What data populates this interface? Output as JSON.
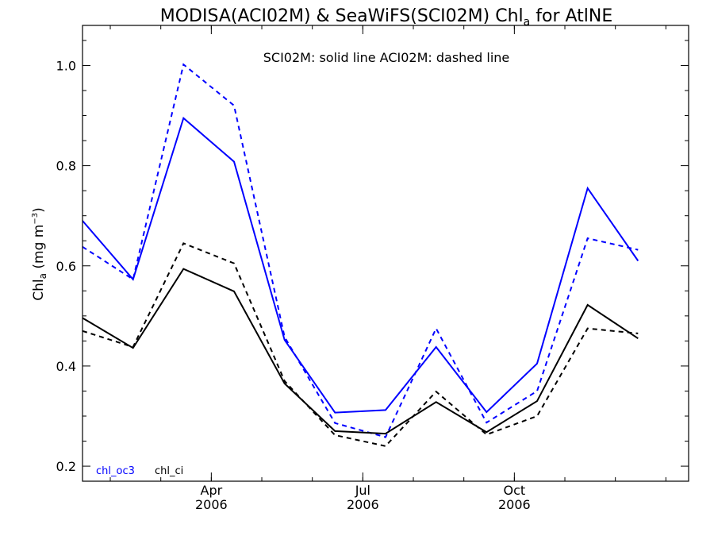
{
  "chart_data": {
    "type": "line",
    "title": {
      "main": "MODISA(ACI02M) & SeaWiFS(SCI02M)  Chl",
      "sub": "a",
      "suffix": " for AtlNE"
    },
    "annotation": "SCI02M: solid line   ACI02M: dashed line",
    "ylabel": {
      "main": "Chl",
      "sub": "a",
      "unit": " (mg m",
      "sup": "−3",
      "close": ")"
    },
    "ylim": [
      0.17,
      1.08
    ],
    "xlim": [
      1,
      13
    ],
    "yticks": [
      0.2,
      0.4,
      0.6,
      0.8,
      1.0
    ],
    "ytick_labels": [
      "0.2",
      "0.4",
      "0.6",
      "0.8",
      "1.0"
    ],
    "xticks": [
      {
        "x": 3.55,
        "month": "Apr",
        "year": "2006"
      },
      {
        "x": 6.55,
        "month": "Jul",
        "year": "2006"
      },
      {
        "x": 9.55,
        "month": "Oct",
        "year": "2006"
      }
    ],
    "x": [
      1,
      2,
      3,
      4,
      5,
      6,
      7,
      8,
      9,
      10,
      11,
      12
    ],
    "grid": false,
    "legend_position": "bottom-left",
    "series": [
      {
        "name": "chl_oc3",
        "group": "SCI02M",
        "style": "solid",
        "color": "#0000ff",
        "values": [
          0.69,
          0.573,
          0.895,
          0.808,
          0.452,
          0.307,
          0.312,
          0.438,
          0.308,
          0.405,
          0.755,
          0.61
        ]
      },
      {
        "name": "chl_oc3",
        "group": "ACI02M",
        "style": "dashed",
        "color": "#0000ff",
        "values": [
          0.638,
          0.573,
          1.002,
          0.92,
          0.458,
          0.286,
          0.258,
          0.475,
          0.287,
          0.35,
          0.655,
          0.632
        ]
      },
      {
        "name": "chl_ci",
        "group": "SCI02M",
        "style": "solid",
        "color": "#000000",
        "values": [
          0.496,
          0.436,
          0.594,
          0.549,
          0.365,
          0.27,
          0.265,
          0.328,
          0.268,
          0.33,
          0.522,
          0.455
        ]
      },
      {
        "name": "chl_ci",
        "group": "ACI02M",
        "style": "dashed",
        "color": "#000000",
        "values": [
          0.47,
          0.438,
          0.645,
          0.605,
          0.37,
          0.262,
          0.24,
          0.349,
          0.263,
          0.3,
          0.475,
          0.465
        ]
      }
    ],
    "legend": [
      {
        "label": "chl_oc3",
        "color": "#0000ff"
      },
      {
        "label": "chl_ci",
        "color": "#000000"
      }
    ]
  }
}
